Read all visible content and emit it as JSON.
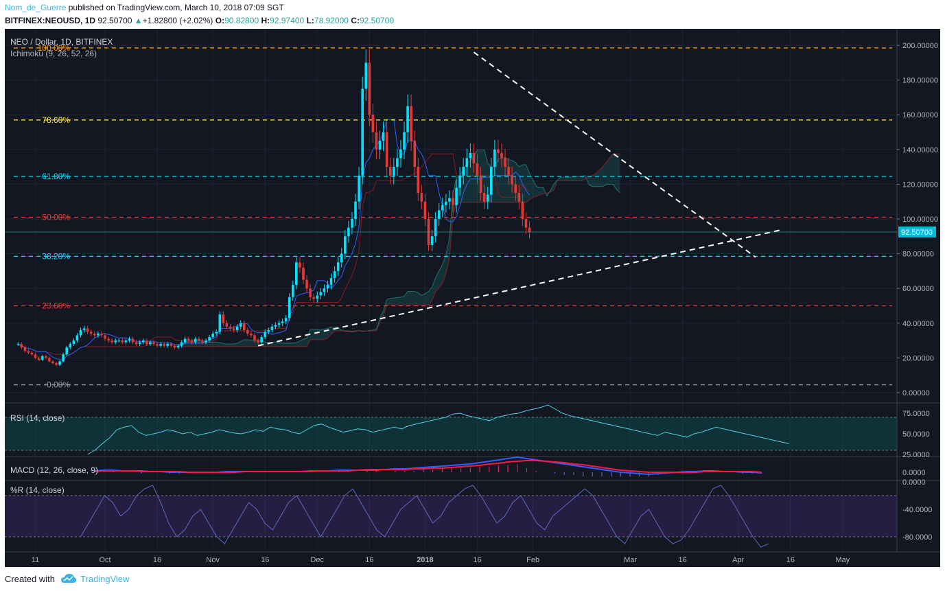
{
  "header": {
    "author": "Nom_de_Guerre",
    "published_text": "published on TradingView.com, March 10, 2018 07:09 SGT",
    "symbol": "BITFINEX:NEOUSD, 1D",
    "last": "92.50700",
    "arrow": "▲",
    "change": "+1.82800 (+2.02%)",
    "o_label": "O:",
    "o_value": "90.82800",
    "h_label": "H:",
    "h_value": "92.97400",
    "l_label": "L:",
    "l_value": "78.92000",
    "c_label": "C:",
    "c_value": "92.50700"
  },
  "footer": {
    "created_with": "Created with",
    "brand": "TradingView"
  },
  "chart_data": [
    {
      "type": "candlestick",
      "title": "NEO / Dollar, 1D, BITFINEX",
      "indicator": "Ichimoku (9, 26, 52, 26)",
      "ylim": [
        -5,
        210
      ],
      "y_ticks": [
        "200.00000",
        "180.00000",
        "160.00000",
        "140.00000",
        "120.00000",
        "100.00000",
        "80.00000",
        "60.00000",
        "40.00000",
        "20.00000",
        "0.00000"
      ],
      "y_tick_values": [
        200,
        180,
        160,
        140,
        120,
        100,
        80,
        60,
        40,
        20,
        0
      ],
      "last_price": 92.507,
      "last_price_label": "92.50700",
      "x_labels": [
        "11",
        "Oct",
        "16",
        "Nov",
        "16",
        "Dec",
        "16",
        "2018",
        "16",
        "Feb",
        "Mar",
        "16",
        "Apr",
        "16",
        "May"
      ],
      "x_label_days": [
        -20,
        0,
        15,
        31,
        46,
        61,
        76,
        92,
        107,
        123,
        151,
        166,
        182,
        197,
        212
      ],
      "fib_levels": [
        {
          "label": "100.00%",
          "value": 198.5,
          "color": "#ff9800"
        },
        {
          "label": "78.60%",
          "value": 157,
          "color": "#ffeb3b"
        },
        {
          "label": "61.80%",
          "value": 124.5,
          "color": "#00e5ff"
        },
        {
          "label": "50.00%",
          "value": 101,
          "color": "#e53935"
        },
        {
          "label": "38.20%",
          "value": 78.5,
          "color": "#00e5ff"
        },
        {
          "label": "23.60%",
          "value": 50,
          "color": "#e53935"
        },
        {
          "label": "0.00%",
          "value": 4.5,
          "color": "#9e9e9e"
        }
      ],
      "close_series": {
        "start_day": -25,
        "values": [
          28,
          26,
          24,
          23,
          22,
          20,
          19,
          21,
          20,
          18,
          17,
          16,
          18,
          22,
          26,
          28,
          30,
          33,
          36,
          37,
          35,
          34,
          33,
          34,
          33,
          31,
          30,
          29,
          30,
          30,
          29,
          30,
          31,
          29,
          28,
          29,
          30,
          28,
          29,
          28,
          27,
          28,
          27,
          28,
          27,
          26,
          27,
          29,
          31,
          30,
          29,
          31,
          30,
          29,
          30,
          32,
          34,
          35,
          45,
          40,
          38,
          37,
          36,
          38,
          40,
          36,
          34,
          33,
          30,
          29,
          32,
          35,
          36,
          38,
          39,
          40,
          41,
          43,
          55,
          62,
          75,
          72,
          65,
          60,
          55,
          54,
          56,
          58,
          60,
          62,
          66,
          70,
          75,
          80,
          90,
          95,
          100,
          110,
          125,
          175,
          190,
          160,
          150,
          140,
          145,
          150,
          130,
          125,
          130,
          135,
          140,
          150,
          165,
          145,
          130,
          115,
          110,
          100,
          85,
          90,
          100,
          105,
          108,
          110,
          112,
          108,
          118,
          125,
          130,
          135,
          138,
          132,
          125,
          115,
          110,
          114,
          130,
          140,
          138,
          135,
          130,
          125,
          120,
          115,
          110,
          100,
          95,
          92.5
        ]
      },
      "trendlines": [
        {
          "name": "resistance",
          "from": {
            "day": 106,
            "price": 196
          },
          "to": {
            "day": 187,
            "price": 78
          }
        },
        {
          "name": "support",
          "from": {
            "day": 44,
            "price": 27
          },
          "to": {
            "day": 195,
            "price": 94
          }
        }
      ]
    },
    {
      "type": "line",
      "title": "RSI (14, close)",
      "ylim": [
        25,
        85
      ],
      "y_ticks": [
        "75.0000",
        "50.0000",
        "25.0000"
      ],
      "y_tick_values": [
        75,
        50,
        25
      ],
      "band": [
        30,
        70
      ],
      "start_day": -5,
      "values": [
        25,
        30,
        38,
        45,
        55,
        58,
        60,
        52,
        48,
        50,
        52,
        55,
        53,
        50,
        52,
        48,
        50,
        52,
        55,
        53,
        51,
        50,
        52,
        55,
        53,
        58,
        56,
        55,
        52,
        50,
        55,
        60,
        62,
        58,
        55,
        52,
        54,
        56,
        55,
        52,
        54,
        56,
        58,
        56,
        60,
        62,
        64,
        66,
        68,
        70,
        74,
        75,
        72,
        70,
        68,
        66,
        70,
        72,
        74,
        75,
        78,
        80,
        82,
        85,
        80,
        75,
        72,
        70,
        68,
        66,
        64,
        62,
        60,
        58,
        56,
        54,
        52,
        50,
        48,
        52,
        50,
        48,
        46,
        50,
        52,
        55,
        58,
        56,
        54,
        52,
        50,
        48,
        46,
        44,
        42,
        40,
        38
      ]
    },
    {
      "type": "line",
      "title": "MACD (12, 26, close, 9)",
      "y_ticks": [
        "0.0000"
      ],
      "y_tick_values": [
        0
      ],
      "start_day": -3,
      "macd": [
        2,
        3,
        3,
        2,
        2,
        1,
        1,
        1,
        0,
        0,
        0,
        0,
        0,
        0,
        1,
        1,
        1,
        1,
        1,
        1,
        1,
        1,
        1,
        2,
        2,
        2,
        3,
        3,
        3,
        4,
        4,
        4,
        5,
        5,
        6,
        7,
        8,
        9,
        10,
        11,
        12,
        14,
        16,
        18,
        20,
        22,
        20,
        18,
        16,
        14,
        12,
        10,
        8,
        6,
        4,
        2,
        0,
        -1,
        -2,
        -3,
        -2,
        -1,
        0,
        1,
        1,
        2,
        2,
        1,
        1,
        0,
        0,
        -1
      ],
      "signal": [
        1,
        2,
        2,
        2,
        2,
        2,
        1,
        1,
        1,
        1,
        0,
        0,
        0,
        0,
        0,
        0,
        1,
        1,
        1,
        1,
        1,
        1,
        1,
        1,
        2,
        2,
        2,
        2,
        3,
        3,
        3,
        4,
        4,
        4,
        5,
        5,
        6,
        6,
        7,
        8,
        9,
        10,
        12,
        13,
        15,
        16,
        17,
        17,
        16,
        15,
        14,
        12,
        11,
        9,
        7,
        5,
        3,
        2,
        1,
        0,
        0,
        0,
        0,
        0,
        0,
        1,
        1,
        1,
        1,
        1,
        1,
        0
      ]
    },
    {
      "type": "line",
      "title": "%R (14, close)",
      "ylim": [
        -100,
        0
      ],
      "y_ticks": [
        "0.0000",
        "-40.0000",
        "-80.0000"
      ],
      "y_tick_values": [
        0,
        -40,
        -80
      ],
      "band": [
        -80,
        -20
      ],
      "start_day": -7,
      "values": [
        -80,
        -60,
        -40,
        -20,
        -30,
        -50,
        -40,
        -20,
        -10,
        -5,
        -30,
        -60,
        -80,
        -70,
        -50,
        -40,
        -60,
        -80,
        -90,
        -70,
        -50,
        -30,
        -40,
        -60,
        -70,
        -50,
        -30,
        -20,
        -40,
        -60,
        -80,
        -60,
        -40,
        -20,
        -10,
        -30,
        -50,
        -70,
        -80,
        -60,
        -40,
        -30,
        -20,
        -40,
        -60,
        -50,
        -30,
        -20,
        -10,
        -5,
        -20,
        -40,
        -60,
        -50,
        -30,
        -20,
        -40,
        -60,
        -70,
        -50,
        -40,
        -30,
        -20,
        -10,
        -20,
        -40,
        -60,
        -80,
        -90,
        -70,
        -50,
        -40,
        -60,
        -80,
        -90,
        -85,
        -70,
        -50,
        -30,
        -10,
        -5,
        -20,
        -40,
        -60,
        -80,
        -95,
        -90
      ]
    }
  ]
}
